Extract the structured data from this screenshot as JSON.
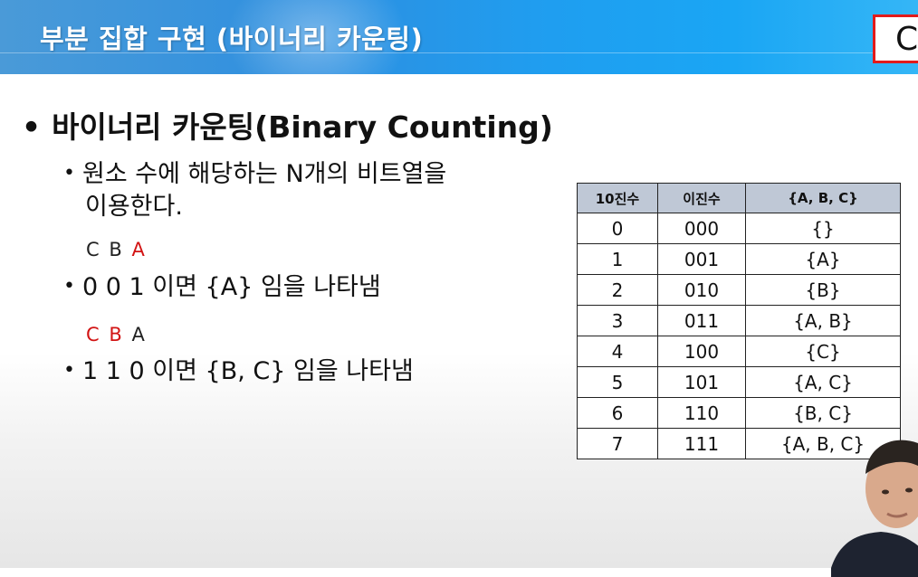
{
  "header": {
    "title": "부분 집합 구현 (바이너리 카운팅)",
    "corner_letter": "C"
  },
  "main_bullet": {
    "text": "바이너리 카운팅(Binary Counting)"
  },
  "sub_bullets": [
    {
      "line1": "원소 수에 해당하는 N개의 비트열을",
      "line2": "이용한다."
    },
    {
      "labels": [
        "C",
        "B",
        "A"
      ],
      "text": "0 0 1 이면 {A} 임을 나타냄"
    },
    {
      "labels": [
        "C",
        "B",
        "A"
      ],
      "text": "1 1 0 이면 {B, C} 임을 나타냄"
    }
  ],
  "table": {
    "headers": [
      "10진수",
      "이진수",
      "{A, B, C}"
    ],
    "rows": [
      [
        "0",
        "000",
        "{}"
      ],
      [
        "1",
        "001",
        "{A}"
      ],
      [
        "2",
        "010",
        "{B}"
      ],
      [
        "3",
        "011",
        "{A, B}"
      ],
      [
        "4",
        "100",
        "{C}"
      ],
      [
        "5",
        "101",
        "{A, C}"
      ],
      [
        "6",
        "110",
        "{B, C}"
      ],
      [
        "7",
        "111",
        "{A, B, C}"
      ]
    ]
  },
  "colors": {
    "header_blue": "#2d8fe0",
    "accent_red": "#d21414",
    "table_header": "#bfc8d6"
  }
}
